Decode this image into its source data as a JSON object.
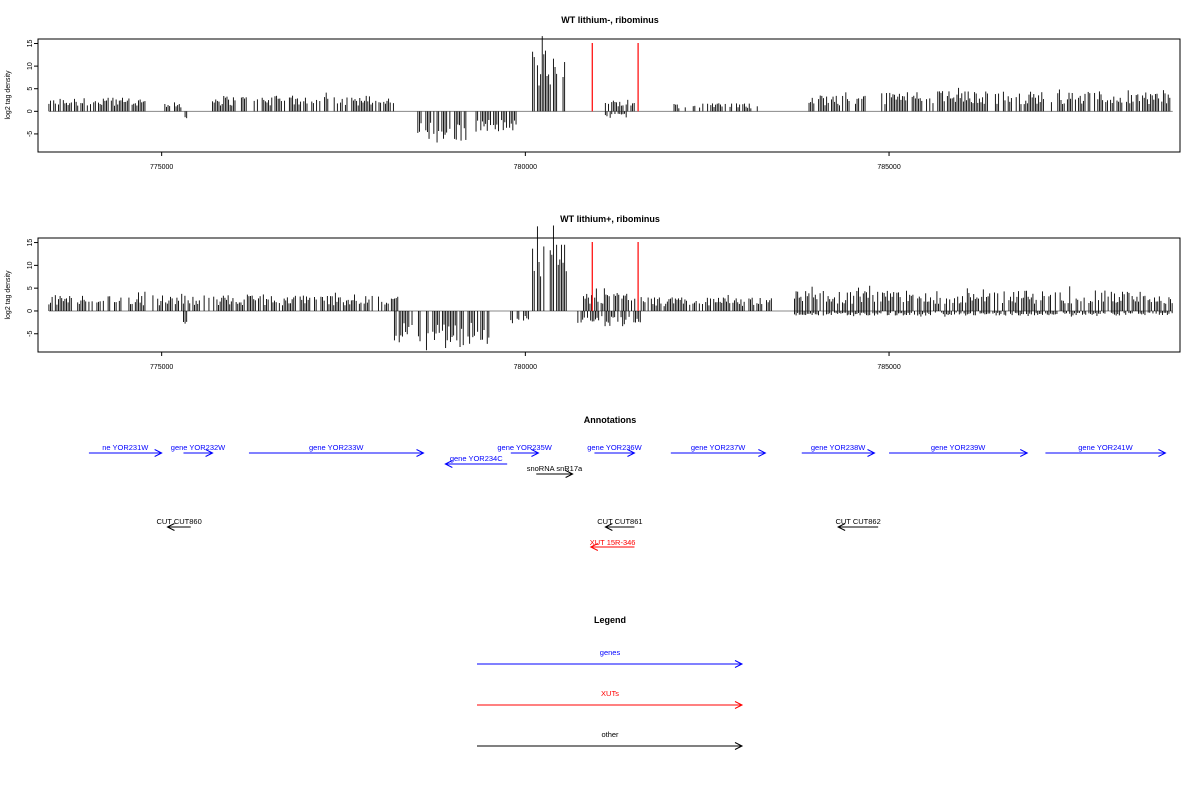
{
  "chart_data": [
    {
      "type": "bar",
      "title": "WT lithium-, ribominus",
      "ylabel": "log2 tag density",
      "xlim": [
        773300,
        789000
      ],
      "ylim": [
        -9,
        16
      ],
      "x_ticks": [
        775000,
        780000,
        785000
      ],
      "y_ticks": [
        -5,
        0,
        5,
        10,
        15
      ],
      "markers": [
        780920,
        781550
      ],
      "marker_color": "#ff0000",
      "segments": [
        {
          "x0": 773450,
          "x1": 774800,
          "dir": 1,
          "amp": 3.0
        },
        {
          "x0": 775000,
          "x1": 775300,
          "dir": 1,
          "amp": 2.0
        },
        {
          "x0": 775300,
          "x1": 775350,
          "dir": -1,
          "amp": 2.0
        },
        {
          "x0": 775700,
          "x1": 778200,
          "dir": 1,
          "amp": 3.5
        },
        {
          "x0": 778500,
          "x1": 779200,
          "dir": -1,
          "amp": 7.0
        },
        {
          "x0": 779300,
          "x1": 779900,
          "dir": -1,
          "amp": 4.5
        },
        {
          "x0": 780100,
          "x1": 780550,
          "dir": 1,
          "amp": 14.0
        },
        {
          "x0": 781100,
          "x1": 781500,
          "dir": 1,
          "amp": 2.5
        },
        {
          "x0": 781100,
          "x1": 781400,
          "dir": -1,
          "amp": 1.5
        },
        {
          "x0": 782000,
          "x1": 783200,
          "dir": 1,
          "amp": 1.8
        },
        {
          "x0": 783900,
          "x1": 784700,
          "dir": 1,
          "amp": 3.5
        },
        {
          "x0": 784900,
          "x1": 788900,
          "dir": 1,
          "amp": 4.5
        }
      ]
    },
    {
      "type": "bar",
      "title": "WT lithium+, ribominus",
      "ylabel": "log2 tag density",
      "xlim": [
        773300,
        789000
      ],
      "ylim": [
        -9,
        16
      ],
      "x_ticks": [
        775000,
        780000,
        785000
      ],
      "y_ticks": [
        -5,
        0,
        5,
        10,
        15
      ],
      "markers": [
        780920,
        781550
      ],
      "marker_color": "#ff0000",
      "segments": [
        {
          "x0": 773450,
          "x1": 778300,
          "dir": 1,
          "amp": 3.5
        },
        {
          "x0": 775300,
          "x1": 775350,
          "dir": -1,
          "amp": 3.0
        },
        {
          "x0": 778200,
          "x1": 779500,
          "dir": -1,
          "amp": 7.5
        },
        {
          "x0": 779800,
          "x1": 780050,
          "dir": -1,
          "amp": 2.5
        },
        {
          "x0": 780100,
          "x1": 780600,
          "dir": 1,
          "amp": 15.0
        },
        {
          "x0": 780700,
          "x1": 781600,
          "dir": -1,
          "amp": 3.0
        },
        {
          "x0": 780800,
          "x1": 781600,
          "dir": 1,
          "amp": 4.0
        },
        {
          "x0": 781600,
          "x1": 783400,
          "dir": 1,
          "amp": 3.0
        },
        {
          "x0": 783700,
          "x1": 788900,
          "dir": 1,
          "amp": 4.5
        },
        {
          "x0": 783700,
          "x1": 788900,
          "dir": -1,
          "amp": 1.0
        }
      ]
    }
  ],
  "annotations": {
    "title": "Annotations",
    "genes": [
      {
        "label": "ne YOR231W",
        "x1": 774000,
        "x2": 775000,
        "dir": 1
      },
      {
        "label": "gene YOR232W",
        "x1": 775300,
        "x2": 775700,
        "dir": 1
      },
      {
        "label": "gene YOR233W",
        "x1": 776200,
        "x2": 778600,
        "dir": 1
      },
      {
        "label": "gene YOR234C",
        "x1": 778900,
        "x2": 779750,
        "dir": -1
      },
      {
        "label": "gene YOR235W",
        "x1": 779800,
        "x2": 780180,
        "dir": 1
      },
      {
        "label": "gene YOR236W",
        "x1": 780950,
        "x2": 781500,
        "dir": 1
      },
      {
        "label": "gene YOR237W",
        "x1": 782000,
        "x2": 783300,
        "dir": 1
      },
      {
        "label": "gene YOR238W",
        "x1": 783800,
        "x2": 784800,
        "dir": 1
      },
      {
        "label": "gene YOR239W",
        "x1": 785000,
        "x2": 786900,
        "dir": 1
      },
      {
        "label": "gene YOR241W",
        "x1": 787150,
        "x2": 788800,
        "dir": 1
      }
    ],
    "other": [
      {
        "label": "snoRNA snR17a",
        "x1": 780150,
        "x2": 780650,
        "dir": 1
      },
      {
        "label": "CUT CUT860",
        "x1": 775080,
        "x2": 775400,
        "dir": -1
      },
      {
        "label": "CUT CUT861",
        "x1": 781100,
        "x2": 781500,
        "dir": -1
      },
      {
        "label": "CUT CUT862",
        "x1": 784300,
        "x2": 784850,
        "dir": -1
      }
    ],
    "xuts": [
      {
        "label": "XUT 15R-346",
        "x1": 780900,
        "x2": 781500,
        "dir": -1
      }
    ],
    "colors": {
      "genes": "#0000ff",
      "xuts": "#ff0000",
      "other": "#000000"
    }
  },
  "legend": {
    "title": "Legend",
    "items": [
      {
        "label": "genes",
        "color": "#0000ff"
      },
      {
        "label": "XUTs",
        "color": "#ff0000"
      },
      {
        "label": "other",
        "color": "#000000"
      }
    ]
  }
}
